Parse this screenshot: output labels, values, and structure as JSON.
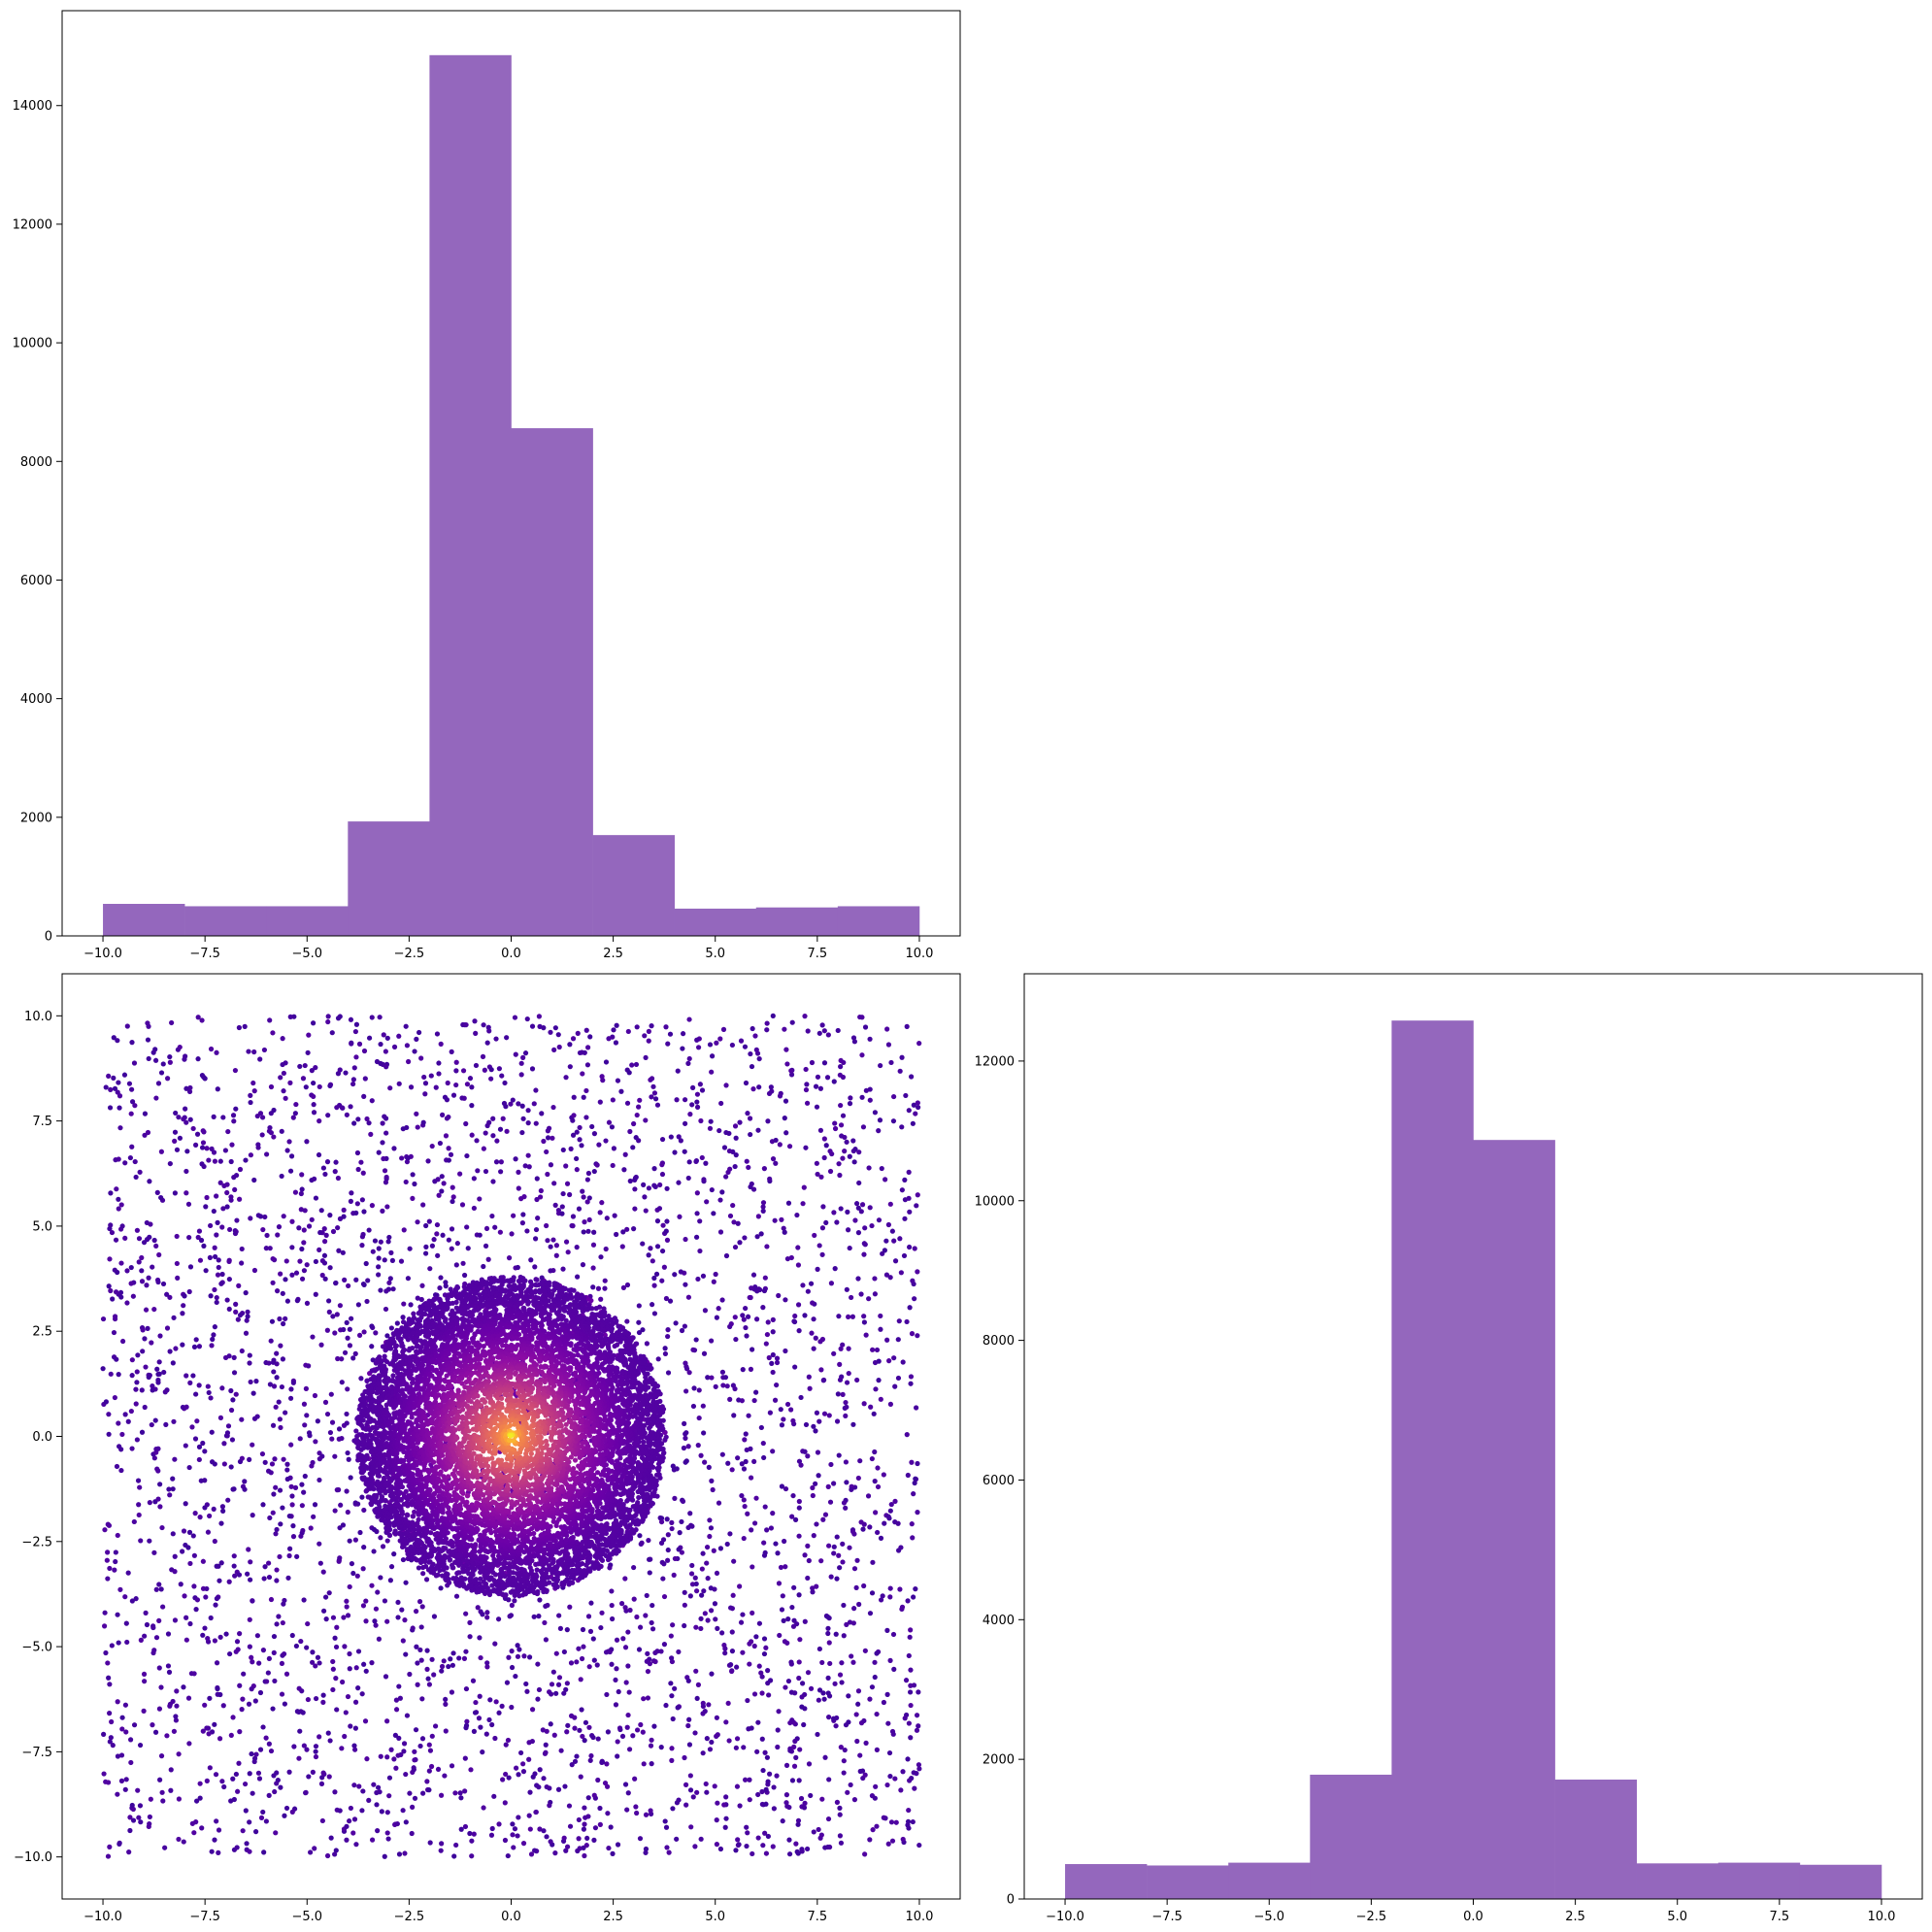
{
  "chart_data": [
    {
      "id": "hist-top",
      "type": "bar",
      "subtype": "histogram",
      "bin_edges": [
        -10,
        -8,
        -6,
        -4,
        -2,
        0,
        2,
        4,
        6,
        8,
        10
      ],
      "values": [
        540,
        500,
        500,
        1930,
        14850,
        8560,
        1700,
        460,
        480,
        500
      ],
      "xlim": [
        -11,
        11
      ],
      "ylim": [
        0,
        15600
      ],
      "xticks": [
        -10,
        -7.5,
        -5,
        -2.5,
        0,
        2.5,
        5,
        7.5,
        10
      ],
      "xtick_labels": [
        "−10.0",
        "−7.5",
        "−5.0",
        "−2.5",
        "0.0",
        "2.5",
        "5.0",
        "7.5",
        "10.0"
      ],
      "yticks": [
        0,
        2000,
        4000,
        6000,
        8000,
        10000,
        12000,
        14000
      ],
      "ytick_labels": [
        "0",
        "2000",
        "4000",
        "6000",
        "8000",
        "10000",
        "12000",
        "14000"
      ],
      "title": "",
      "xlabel": "",
      "ylabel": "",
      "grid": false,
      "color": "#9467bd"
    },
    {
      "id": "scatter",
      "type": "scatter",
      "description_of_data": "uniform background points over [-10,10] x [-10,10] plus a dense disc of radius ~3.8 centred at (0,0); colour by density (plasma colormap, yellow at centre, dark blue/purple outside)",
      "uniform_range": [
        -10,
        10
      ],
      "disc_center": [
        0,
        0
      ],
      "disc_radius": 3.8,
      "xlim": [
        -11,
        11
      ],
      "ylim": [
        -11,
        11
      ],
      "xticks": [
        -10,
        -7.5,
        -5,
        -2.5,
        0,
        2.5,
        5,
        7.5,
        10
      ],
      "xtick_labels": [
        "−10.0",
        "−7.5",
        "−5.0",
        "−2.5",
        "0.0",
        "2.5",
        "5.0",
        "7.5",
        "10.0"
      ],
      "yticks": [
        -10,
        -7.5,
        -5,
        -2.5,
        0,
        2.5,
        5,
        7.5,
        10
      ],
      "ytick_labels": [
        "−10.0",
        "−7.5",
        "−5.0",
        "−2.5",
        "0.0",
        "2.5",
        "5.0",
        "7.5",
        "10.0"
      ],
      "colormap": "plasma",
      "colors": {
        "outer": "#3a049a",
        "mid": "#8f0da4",
        "warm": "#e16462",
        "center": "#f0f921"
      },
      "title": "",
      "xlabel": "",
      "ylabel": "",
      "grid": false
    },
    {
      "id": "hist-right",
      "type": "bar",
      "subtype": "histogram",
      "bin_edges": [
        -10,
        -8,
        -6,
        -4,
        -2,
        0,
        2,
        4,
        6,
        8,
        10
      ],
      "values": [
        500,
        480,
        520,
        1780,
        12580,
        10870,
        1710,
        510,
        520,
        490
      ],
      "xlim": [
        -11,
        11
      ],
      "ylim": [
        0,
        13250
      ],
      "xticks": [
        -10,
        -7.5,
        -5,
        -2.5,
        0,
        2.5,
        5,
        7.5,
        10
      ],
      "xtick_labels": [
        "−10.0",
        "−7.5",
        "−5.0",
        "−2.5",
        "0.0",
        "2.5",
        "5.0",
        "7.5",
        "10.0"
      ],
      "yticks": [
        0,
        2000,
        4000,
        6000,
        8000,
        10000,
        12000
      ],
      "ytick_labels": [
        "0",
        "2000",
        "4000",
        "6000",
        "8000",
        "10000",
        "12000"
      ],
      "title": "",
      "xlabel": "",
      "ylabel": "",
      "grid": false,
      "color": "#9467bd"
    }
  ]
}
